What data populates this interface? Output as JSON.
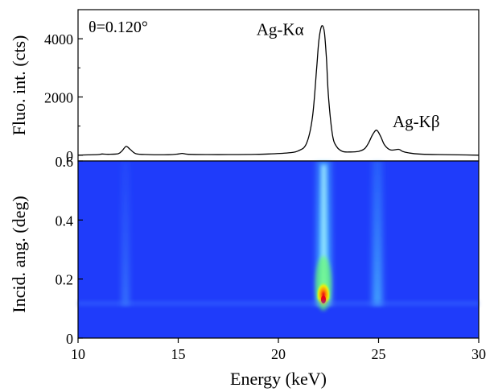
{
  "chart_data": [
    {
      "type": "line",
      "annotation": "θ=0.120°",
      "ylabel": "Fluo. int. (cts)",
      "xlim": [
        10,
        30
      ],
      "ylim": [
        -200,
        5000
      ],
      "yticks": [
        0,
        2000,
        4000
      ],
      "peak_labels": [
        {
          "text": "Ag-Kα",
          "x": 22.2,
          "y": 4400
        },
        {
          "text": "Ag-Kβ",
          "x": 24.9,
          "y": 850
        }
      ],
      "series": [
        {
          "x": [
            10.0,
            10.5,
            11.0,
            11.2,
            11.5,
            12.0,
            12.2,
            12.4,
            12.6,
            12.9,
            13.5,
            14.5,
            15.0,
            15.2,
            15.5,
            16.5,
            17.5,
            18.5,
            19.5,
            20.5,
            21.0,
            21.4,
            21.7,
            21.9,
            22.0,
            22.1,
            22.2,
            22.3,
            22.4,
            22.5,
            22.7,
            22.9,
            23.2,
            23.6,
            24.0,
            24.3,
            24.5,
            24.7,
            24.9,
            25.1,
            25.3,
            25.6,
            26.0,
            26.2,
            26.5,
            27.0,
            28.0,
            29.0,
            30.0
          ],
          "y": [
            0,
            10,
            20,
            40,
            30,
            50,
            150,
            300,
            200,
            50,
            20,
            15,
            40,
            60,
            30,
            20,
            20,
            25,
            40,
            80,
            150,
            400,
            1300,
            2900,
            3800,
            4300,
            4450,
            4200,
            3300,
            2000,
            700,
            300,
            130,
            110,
            130,
            220,
            420,
            700,
            860,
            650,
            350,
            180,
            200,
            130,
            80,
            40,
            20,
            10,
            0
          ]
        }
      ]
    },
    {
      "type": "heatmap",
      "xlabel": "Energy (keV)",
      "ylabel": "Incid. ang. (deg)",
      "xlim": [
        10,
        30
      ],
      "ylim": [
        0,
        0.6
      ],
      "xticks": [
        10,
        15,
        20,
        25,
        30
      ],
      "yticks": [
        0,
        0.2,
        0.4,
        0.6
      ],
      "colors": {
        "low": "#1f3cfa",
        "mid": "#5ad8ff",
        "high": "#ffee00",
        "peak": "#e8001a"
      },
      "features": [
        {
          "energy": 22.1,
          "max_at_angle": 0.13,
          "peak_level": 1.0
        },
        {
          "energy": 24.95,
          "max_at_angle": 0.13,
          "peak_level": 0.35
        },
        {
          "energy": 12.3,
          "max_at_angle": 0.13,
          "peak_level": 0.15
        }
      ]
    }
  ]
}
